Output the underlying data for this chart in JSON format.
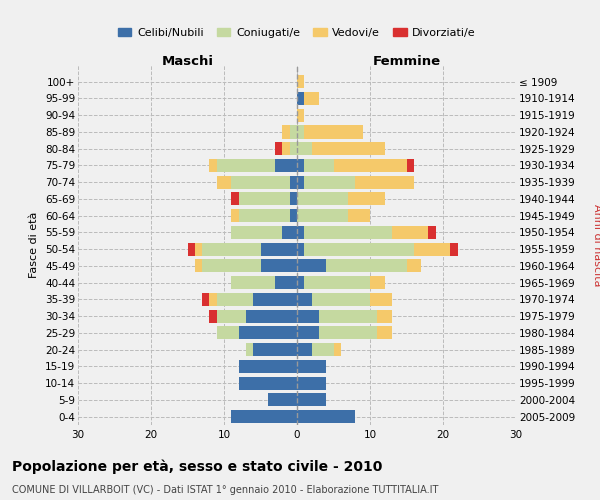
{
  "age_groups": [
    "0-4",
    "5-9",
    "10-14",
    "15-19",
    "20-24",
    "25-29",
    "30-34",
    "35-39",
    "40-44",
    "45-49",
    "50-54",
    "55-59",
    "60-64",
    "65-69",
    "70-74",
    "75-79",
    "80-84",
    "85-89",
    "90-94",
    "95-99",
    "100+"
  ],
  "birth_years": [
    "2005-2009",
    "2000-2004",
    "1995-1999",
    "1990-1994",
    "1985-1989",
    "1980-1984",
    "1975-1979",
    "1970-1974",
    "1965-1969",
    "1960-1964",
    "1955-1959",
    "1950-1954",
    "1945-1949",
    "1940-1944",
    "1935-1939",
    "1930-1934",
    "1925-1929",
    "1920-1924",
    "1915-1919",
    "1910-1914",
    "≤ 1909"
  ],
  "maschi": {
    "celibi": [
      9,
      4,
      8,
      8,
      6,
      8,
      7,
      6,
      3,
      5,
      5,
      2,
      1,
      1,
      1,
      3,
      0,
      0,
      0,
      0,
      0
    ],
    "coniugati": [
      0,
      0,
      0,
      0,
      1,
      3,
      4,
      5,
      6,
      8,
      8,
      7,
      7,
      7,
      8,
      8,
      1,
      1,
      0,
      0,
      0
    ],
    "vedovi": [
      0,
      0,
      0,
      0,
      0,
      0,
      0,
      1,
      0,
      1,
      1,
      0,
      1,
      0,
      2,
      1,
      1,
      1,
      0,
      0,
      0
    ],
    "divorziati": [
      0,
      0,
      0,
      0,
      0,
      0,
      1,
      1,
      0,
      0,
      1,
      0,
      0,
      1,
      0,
      0,
      1,
      0,
      0,
      0,
      0
    ]
  },
  "femmine": {
    "nubili": [
      8,
      4,
      4,
      4,
      2,
      3,
      3,
      2,
      1,
      4,
      1,
      1,
      0,
      0,
      1,
      1,
      0,
      0,
      0,
      1,
      0
    ],
    "coniugate": [
      0,
      0,
      0,
      0,
      3,
      8,
      8,
      8,
      9,
      11,
      15,
      12,
      7,
      7,
      7,
      4,
      2,
      1,
      0,
      0,
      0
    ],
    "vedove": [
      0,
      0,
      0,
      0,
      1,
      2,
      2,
      3,
      2,
      2,
      5,
      5,
      3,
      5,
      8,
      10,
      10,
      8,
      1,
      2,
      1
    ],
    "divorziate": [
      0,
      0,
      0,
      0,
      0,
      0,
      0,
      0,
      0,
      0,
      1,
      1,
      0,
      0,
      0,
      1,
      0,
      0,
      0,
      0,
      0
    ]
  },
  "colors": {
    "celibi": "#3d6fa8",
    "coniugati": "#c5d9a0",
    "vedovi": "#f5c96a",
    "divorziati": "#d93030"
  },
  "xlim": 30,
  "title": "Popolazione per età, sesso e stato civile - 2010",
  "subtitle": "COMUNE DI VILLARBOIT (VC) - Dati ISTAT 1° gennaio 2010 - Elaborazione TUTTITALIA.IT",
  "ylabel_left": "Fasce di età",
  "ylabel_right": "Anni di nascita",
  "legend_labels": [
    "Celibi/Nubili",
    "Coniugati/e",
    "Vedovi/e",
    "Divorziati/e"
  ],
  "maschi_label": "Maschi",
  "femmine_label": "Femmine",
  "bg_color": "#f0f0f0",
  "title_fontsize": 10,
  "subtitle_fontsize": 7,
  "tick_fontsize": 7.5,
  "legend_fontsize": 8
}
